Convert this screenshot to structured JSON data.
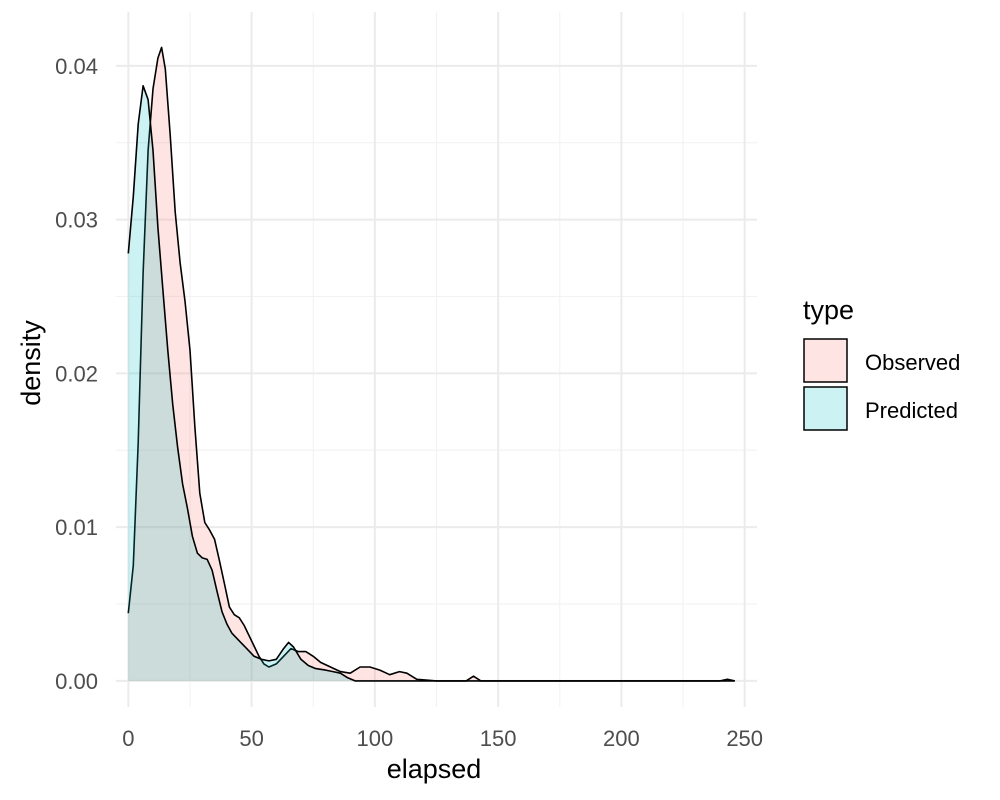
{
  "chart_data": {
    "type": "area",
    "subtype": "density",
    "xlabel": "elapsed",
    "ylabel": "density",
    "xlim": [
      -5,
      255
    ],
    "ylim": [
      -0.0017,
      0.0435
    ],
    "x_ticks": [
      0,
      50,
      100,
      150,
      200,
      250
    ],
    "x_tick_labels": [
      "0",
      "50",
      "100",
      "150",
      "200",
      "250"
    ],
    "y_ticks": [
      0,
      0.01,
      0.02,
      0.03,
      0.04
    ],
    "y_tick_labels": [
      "0.00",
      "0.01",
      "0.02",
      "0.03",
      "0.04"
    ],
    "grid": true,
    "legend": {
      "title": "type",
      "position": "right"
    },
    "series": [
      {
        "name": "Observed",
        "fill": "#F8766D",
        "points": [
          [
            0,
            0.0044
          ],
          [
            2,
            0.0075
          ],
          [
            4,
            0.0155
          ],
          [
            6,
            0.0265
          ],
          [
            8,
            0.0345
          ],
          [
            10,
            0.0385
          ],
          [
            12,
            0.0405
          ],
          [
            13.5,
            0.0412
          ],
          [
            15,
            0.0398
          ],
          [
            17,
            0.0355
          ],
          [
            19,
            0.0305
          ],
          [
            21,
            0.0272
          ],
          [
            23,
            0.0247
          ],
          [
            25,
            0.0215
          ],
          [
            27,
            0.0165
          ],
          [
            29,
            0.0122
          ],
          [
            31,
            0.0103
          ],
          [
            33,
            0.0098
          ],
          [
            35,
            0.0092
          ],
          [
            37,
            0.0078
          ],
          [
            39,
            0.0063
          ],
          [
            41,
            0.0048
          ],
          [
            43,
            0.0043
          ],
          [
            45,
            0.0041
          ],
          [
            47,
            0.0036
          ],
          [
            50,
            0.0026
          ],
          [
            53,
            0.0016
          ],
          [
            55,
            0.0011
          ],
          [
            57,
            0.0009
          ],
          [
            60,
            0.0011
          ],
          [
            63,
            0.0016
          ],
          [
            66,
            0.0021
          ],
          [
            69,
            0.0019
          ],
          [
            72,
            0.0019
          ],
          [
            75,
            0.0016
          ],
          [
            78,
            0.0012
          ],
          [
            82,
            0.0009
          ],
          [
            86,
            0.0006
          ],
          [
            90,
            0.0005
          ],
          [
            94,
            0.0009
          ],
          [
            98,
            0.0009
          ],
          [
            102,
            0.0007
          ],
          [
            106,
            0.0004
          ],
          [
            110,
            0.0006
          ],
          [
            113,
            0.0005
          ],
          [
            117,
            0.0001
          ],
          [
            125,
            0.0
          ],
          [
            137,
            0.0
          ],
          [
            140,
            0.0003
          ],
          [
            143,
            0.0
          ],
          [
            160,
            0.0
          ],
          [
            200,
            0.0
          ],
          [
            240,
            0.0
          ],
          [
            243,
            0.0001
          ],
          [
            246,
            0.0
          ]
        ]
      },
      {
        "name": "Predicted",
        "fill": "#00BFC4",
        "points": [
          [
            0,
            0.0278
          ],
          [
            2,
            0.0315
          ],
          [
            4,
            0.0362
          ],
          [
            6,
            0.0387
          ],
          [
            8,
            0.0378
          ],
          [
            10,
            0.0345
          ],
          [
            12,
            0.0295
          ],
          [
            14,
            0.0255
          ],
          [
            16,
            0.0215
          ],
          [
            18,
            0.018
          ],
          [
            20,
            0.0152
          ],
          [
            22,
            0.0128
          ],
          [
            24,
            0.0112
          ],
          [
            26,
            0.0094
          ],
          [
            28,
            0.0083
          ],
          [
            30,
            0.008
          ],
          [
            32,
            0.0079
          ],
          [
            34,
            0.0072
          ],
          [
            36,
            0.0058
          ],
          [
            38,
            0.0045
          ],
          [
            40,
            0.0037
          ],
          [
            42,
            0.0031
          ],
          [
            45,
            0.0026
          ],
          [
            48,
            0.0021
          ],
          [
            51,
            0.0016
          ],
          [
            54,
            0.0014
          ],
          [
            57,
            0.0013
          ],
          [
            60,
            0.0014
          ],
          [
            63,
            0.0021
          ],
          [
            65,
            0.0025
          ],
          [
            67,
            0.0022
          ],
          [
            70,
            0.0014
          ],
          [
            73,
            0.001
          ],
          [
            76,
            0.0008
          ],
          [
            80,
            0.0007
          ],
          [
            83,
            0.0006
          ],
          [
            86,
            0.0005
          ],
          [
            89,
            0.0002
          ],
          [
            92,
            0.0
          ],
          [
            100,
            0.0
          ],
          [
            150,
            0.0
          ],
          [
            200,
            0.0
          ],
          [
            243,
            0.0
          ],
          [
            246,
            0.0
          ]
        ]
      }
    ]
  }
}
